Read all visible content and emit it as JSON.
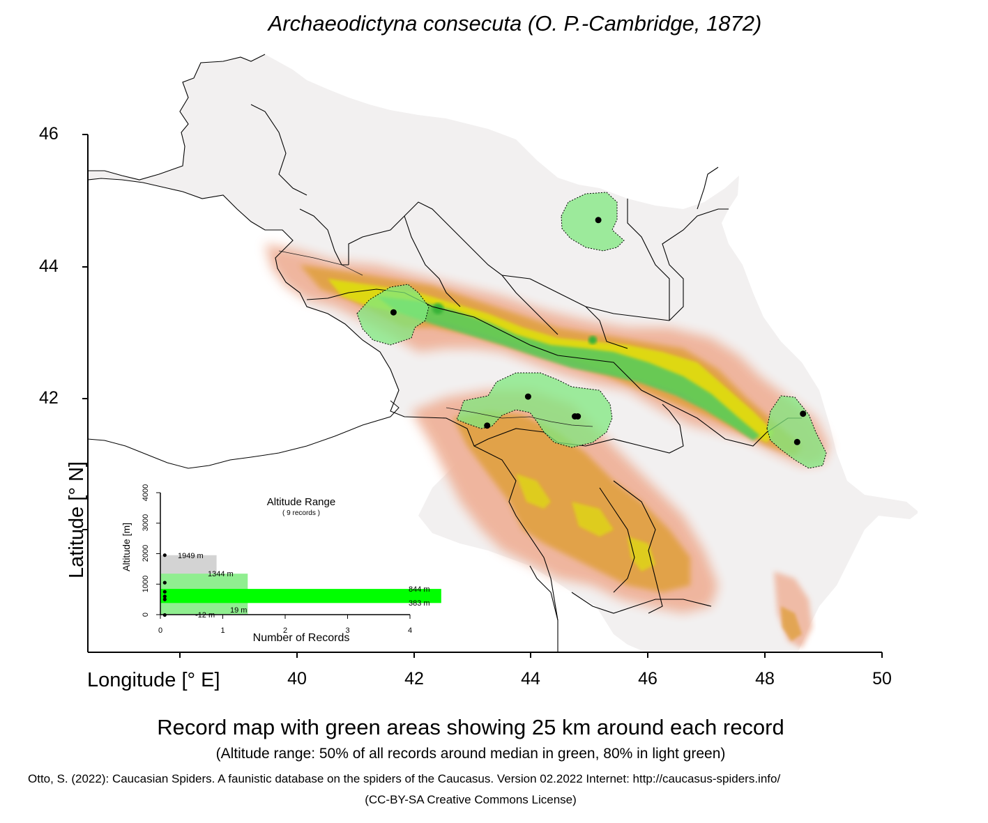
{
  "title": "Archaeodictyna consecuta (O. P.-Cambridge, 1872)",
  "map": {
    "x_axis_label": "Longitude [° E]",
    "y_axis_label": "Latitude [° N]",
    "x_ticks": [
      "40",
      "42",
      "44",
      "46",
      "48",
      "50"
    ],
    "y_ticks": [
      "46",
      "44",
      "42"
    ],
    "layers": [
      "elevation-shading",
      "country-borders",
      "coastline",
      "record-buffer-25km"
    ],
    "records": [
      {
        "lon": 45.15,
        "lat": 44.7
      },
      {
        "lon": 41.65,
        "lat": 43.3
      },
      {
        "lon": 43.95,
        "lat": 42.02
      },
      {
        "lon": 44.75,
        "lat": 41.72
      },
      {
        "lon": 44.8,
        "lat": 41.72
      },
      {
        "lon": 43.25,
        "lat": 41.58
      },
      {
        "lon": 48.65,
        "lat": 41.76
      },
      {
        "lon": 48.55,
        "lat": 41.33
      }
    ],
    "colors": {
      "lowland": "#f2f0f0",
      "foothill": "#efb29a",
      "mountain": "#e0a040",
      "highland": "#dede10",
      "buffer": "#7fe87f",
      "record": "#000000"
    }
  },
  "altitude_inset": {
    "title": "Altitude Range",
    "subtitle": "( 9 records )",
    "x_axis_label": "Number of Records",
    "y_axis_label": "Altitude [m]",
    "x_ticks": [
      "0",
      "1",
      "2",
      "3",
      "4"
    ],
    "y_ticks": [
      "0",
      "1000",
      "2000",
      "3000",
      "4000"
    ],
    "labels": {
      "max": "1949  m",
      "p90": "1344  m",
      "p75": "844  m",
      "p25": "383  m",
      "p10": "19  m",
      "min": "-12  m"
    },
    "bands": [
      {
        "name": "full-range",
        "low": -12,
        "high": 1949,
        "width": 0.9,
        "color": "#d3d3d3"
      },
      {
        "name": "80-percent",
        "low": 19,
        "high": 1344,
        "width": 1.4,
        "color": "#90ee90"
      },
      {
        "name": "50-percent",
        "low": 383,
        "high": 844,
        "width": 4.5,
        "color": "#00ff00"
      }
    ],
    "record_altitudes": [
      1949,
      1050,
      750,
      600,
      500,
      -12
    ]
  },
  "caption": "Record map with green areas showing 25 km around each record",
  "subcaption": "(Altitude range: 50% of all records around median in green, 80% in light green)",
  "citation": "Otto, S. (2022): Caucasian Spiders. A faunistic database on the spiders of the Caucasus. Version 02.2022 Internet: http://caucasus-spiders.info/",
  "license": "(CC-BY-SA Creative Commons License)"
}
